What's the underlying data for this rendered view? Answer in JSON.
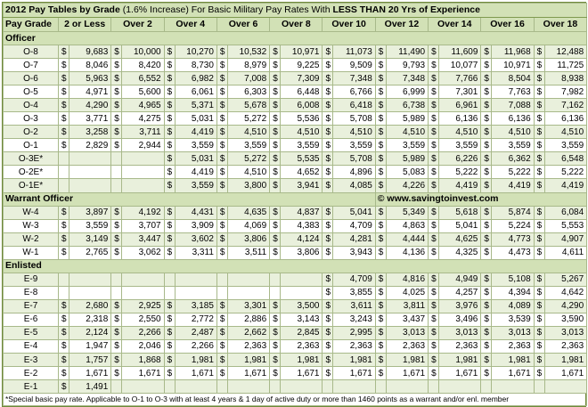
{
  "title": {
    "part1": "2012 Pay Tables by Grade",
    "part2": " (1.6% Increase) For Basic Military Pay Rates With ",
    "part3": "LESS THAN 20 Yrs of Experience"
  },
  "columns": [
    "Pay Grade",
    "2 or Less",
    "Over 2",
    "Over 4",
    "Over 6",
    "Over 8",
    "Over 10",
    "Over 12",
    "Over 14",
    "Over 16",
    "Over 18"
  ],
  "currency_symbol": "$",
  "watermark": "© www.savingtoinvest.com",
  "footnote": "*Special basic pay rate. Applicable to O-1 to O-3 with at least 4 years & 1 day of active duty or more than 1460 points as a warrant and/or enl. member",
  "sections": [
    {
      "name": "Officer",
      "rows": [
        {
          "grade": "O-8",
          "values": [
            "9,683",
            "10,000",
            "10,270",
            "10,532",
            "10,971",
            "11,073",
            "11,490",
            "11,609",
            "11,968",
            "12,488"
          ]
        },
        {
          "grade": "O-7",
          "values": [
            "8,046",
            "8,420",
            "8,730",
            "8,979",
            "9,225",
            "9,509",
            "9,793",
            "10,077",
            "10,971",
            "11,725"
          ]
        },
        {
          "grade": "O-6",
          "values": [
            "5,963",
            "6,552",
            "6,982",
            "7,008",
            "7,309",
            "7,348",
            "7,348",
            "7,766",
            "8,504",
            "8,938"
          ]
        },
        {
          "grade": "O-5",
          "values": [
            "4,971",
            "5,600",
            "6,061",
            "6,303",
            "6,448",
            "6,766",
            "6,999",
            "7,301",
            "7,763",
            "7,982"
          ]
        },
        {
          "grade": "O-4",
          "values": [
            "4,290",
            "4,965",
            "5,371",
            "5,678",
            "6,008",
            "6,418",
            "6,738",
            "6,961",
            "7,088",
            "7,162"
          ]
        },
        {
          "grade": "O-3",
          "values": [
            "3,771",
            "4,275",
            "5,031",
            "5,272",
            "5,536",
            "5,708",
            "5,989",
            "6,136",
            "6,136",
            "6,136"
          ]
        },
        {
          "grade": "O-2",
          "values": [
            "3,258",
            "3,711",
            "4,419",
            "4,510",
            "4,510",
            "4,510",
            "4,510",
            "4,510",
            "4,510",
            "4,510"
          ]
        },
        {
          "grade": "O-1",
          "values": [
            "2,829",
            "2,944",
            "3,559",
            "3,559",
            "3,559",
            "3,559",
            "3,559",
            "3,559",
            "3,559",
            "3,559"
          ]
        },
        {
          "grade": "O-3E*",
          "values": [
            "",
            "",
            "5,031",
            "5,272",
            "5,535",
            "5,708",
            "5,989",
            "6,226",
            "6,362",
            "6,548"
          ]
        },
        {
          "grade": "O-2E*",
          "values": [
            "",
            "",
            "4,419",
            "4,510",
            "4,652",
            "4,896",
            "5,083",
            "5,222",
            "5,222",
            "5,222"
          ]
        },
        {
          "grade": "O-1E*",
          "values": [
            "",
            "",
            "3,559",
            "3,800",
            "3,941",
            "4,085",
            "4,226",
            "4,419",
            "4,419",
            "4,419"
          ]
        }
      ]
    },
    {
      "name": "Warrant Officer",
      "rows": [
        {
          "grade": "W-4",
          "values": [
            "3,897",
            "4,192",
            "4,431",
            "4,635",
            "4,837",
            "5,041",
            "5,349",
            "5,618",
            "5,874",
            "6,084"
          ]
        },
        {
          "grade": "W-3",
          "values": [
            "3,559",
            "3,707",
            "3,909",
            "4,069",
            "4,383",
            "4,709",
            "4,863",
            "5,041",
            "5,224",
            "5,553"
          ]
        },
        {
          "grade": "W-2",
          "values": [
            "3,149",
            "3,447",
            "3,602",
            "3,806",
            "4,124",
            "4,281",
            "4,444",
            "4,625",
            "4,773",
            "4,907"
          ]
        },
        {
          "grade": "W-1",
          "values": [
            "2,765",
            "3,062",
            "3,311",
            "3,511",
            "3,806",
            "3,943",
            "4,136",
            "4,325",
            "4,473",
            "4,611"
          ]
        }
      ]
    },
    {
      "name": "Enlisted",
      "rows": [
        {
          "grade": "E-9",
          "values": [
            "",
            "",
            "",
            "",
            "",
            "4,709",
            "4,816",
            "4,949",
            "5,108",
            "5,267"
          ]
        },
        {
          "grade": "E-8",
          "values": [
            "",
            "",
            "",
            "",
            "",
            "3,855",
            "4,025",
            "4,257",
            "4,394",
            "4,642"
          ]
        },
        {
          "grade": "E-7",
          "values": [
            "2,680",
            "2,925",
            "3,185",
            "3,301",
            "3,500",
            "3,611",
            "3,811",
            "3,976",
            "4,089",
            "4,290"
          ]
        },
        {
          "grade": "E-6",
          "values": [
            "2,318",
            "2,550",
            "2,772",
            "2,886",
            "3,143",
            "3,243",
            "3,437",
            "3,496",
            "3,539",
            "3,590"
          ]
        },
        {
          "grade": "E-5",
          "values": [
            "2,124",
            "2,266",
            "2,487",
            "2,662",
            "2,845",
            "2,995",
            "3,013",
            "3,013",
            "3,013",
            "3,013"
          ]
        },
        {
          "grade": "E-4",
          "values": [
            "1,947",
            "2,046",
            "2,266",
            "2,363",
            "2,363",
            "2,363",
            "2,363",
            "2,363",
            "2,363",
            "2,363"
          ]
        },
        {
          "grade": "E-3",
          "values": [
            "1,757",
            "1,868",
            "1,981",
            "1,981",
            "1,981",
            "1,981",
            "1,981",
            "1,981",
            "1,981",
            "1,981"
          ]
        },
        {
          "grade": "E-2",
          "values": [
            "1,671",
            "1,671",
            "1,671",
            "1,671",
            "1,671",
            "1,671",
            "1,671",
            "1,671",
            "1,671",
            "1,671"
          ]
        },
        {
          "grade": "E-1",
          "values": [
            "1,491",
            "",
            "",
            "",
            "",
            "",
            "",
            "",
            "",
            ""
          ]
        }
      ]
    }
  ]
}
